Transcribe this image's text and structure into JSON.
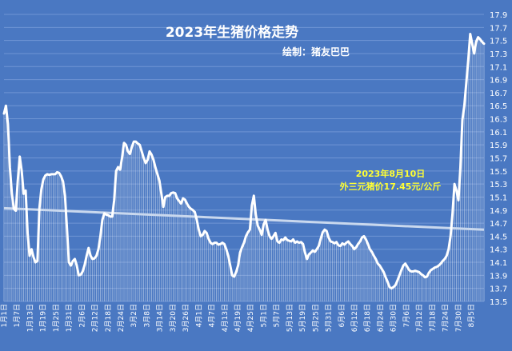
{
  "chart_data": {
    "type": "line",
    "title": "2023年生猪价格走势",
    "subtitle": "绘制：猪友巴巴",
    "annotation_lines": [
      "2023年8月10日",
      "外三元猪价17.45元/公斤"
    ],
    "ylim": [
      13.5,
      17.9
    ],
    "yticks": [
      13.5,
      13.7,
      13.9,
      14.1,
      14.3,
      14.5,
      14.7,
      14.9,
      15.1,
      15.3,
      15.5,
      15.7,
      15.9,
      16.1,
      16.3,
      16.5,
      16.7,
      16.9,
      17.1,
      17.3,
      17.5,
      17.7,
      17.9
    ],
    "xticks": [
      "1月1日",
      "1月7日",
      "1月13日",
      "1月19日",
      "1月25日",
      "1月31日",
      "2月6日",
      "2月12日",
      "2月18日",
      "2月24日",
      "3月2日",
      "3月8日",
      "3月14日",
      "3月20日",
      "3月26日",
      "4月1日",
      "4月7日",
      "4月13日",
      "4月19日",
      "4月25日",
      "5月1日",
      "5月7日",
      "5月13日",
      "5月19日",
      "5月25日",
      "5月31日",
      "6月6日",
      "6月12日",
      "6月18日",
      "6月24日",
      "6月30日",
      "7月6日",
      "7月12日",
      "7月18日",
      "7月24日",
      "7月30日",
      "8月5日"
    ],
    "series": [
      {
        "values": [
          16.38,
          16.5,
          16.22,
          15.55,
          15.15,
          14.92,
          14.89,
          15.35,
          15.72,
          15.5,
          15.15,
          15.2,
          14.55,
          14.2,
          14.3,
          14.18,
          14.1,
          14.12,
          14.93,
          15.22,
          15.37,
          15.43,
          15.45,
          15.44,
          15.45,
          15.45,
          15.45,
          15.48,
          15.47,
          15.42,
          15.34,
          15.12,
          14.62,
          14.1,
          14.05,
          14.12,
          14.15,
          14.05,
          13.9,
          13.91,
          13.96,
          14.06,
          14.2,
          14.32,
          14.2,
          14.15,
          14.16,
          14.2,
          14.3,
          14.5,
          14.75,
          14.85,
          14.83,
          14.82,
          14.8,
          14.8,
          15.05,
          15.5,
          15.56,
          15.52,
          15.7,
          15.93,
          15.9,
          15.8,
          15.76,
          15.87,
          15.95,
          15.95,
          15.92,
          15.9,
          15.8,
          15.7,
          15.62,
          15.67,
          15.8,
          15.75,
          15.67,
          15.55,
          15.45,
          15.35,
          15.15,
          14.95,
          15.1,
          15.12,
          15.12,
          15.16,
          15.17,
          15.16,
          15.08,
          15.04,
          15.0,
          15.08,
          15.06,
          15.0,
          14.95,
          14.92,
          14.9,
          14.87,
          14.75,
          14.6,
          14.5,
          14.52,
          14.58,
          14.55,
          14.46,
          14.4,
          14.38,
          14.4,
          14.4,
          14.37,
          14.38,
          14.4,
          14.38,
          14.3,
          14.2,
          14.05,
          13.9,
          13.88,
          13.95,
          14.05,
          14.25,
          14.33,
          14.4,
          14.5,
          14.56,
          14.6,
          14.97,
          15.12,
          14.83,
          14.66,
          14.6,
          14.52,
          14.68,
          14.75,
          14.6,
          14.5,
          14.46,
          14.5,
          14.55,
          14.42,
          14.4,
          14.45,
          14.44,
          14.48,
          14.44,
          14.43,
          14.42,
          14.45,
          14.4,
          14.42,
          14.4,
          14.41,
          14.38,
          14.25,
          14.15,
          14.22,
          14.25,
          14.28,
          14.26,
          14.3,
          14.35,
          14.46,
          14.56,
          14.6,
          14.58,
          14.48,
          14.42,
          14.41,
          14.39,
          14.41,
          14.36,
          14.35,
          14.39,
          14.37,
          14.4,
          14.42,
          14.38,
          14.35,
          14.3,
          14.33,
          14.38,
          14.42,
          14.48,
          14.5,
          14.45,
          14.38,
          14.3,
          14.26,
          14.2,
          14.15,
          14.08,
          14.05,
          14.0,
          13.95,
          13.87,
          13.8,
          13.72,
          13.7,
          13.72,
          13.75,
          13.82,
          13.9,
          13.98,
          14.05,
          14.08,
          14.03,
          13.98,
          13.96,
          13.96,
          13.97,
          13.96,
          13.95,
          13.92,
          13.9,
          13.87,
          13.88,
          13.94,
          13.98,
          14.0,
          14.02,
          14.03,
          14.05,
          14.08,
          14.12,
          14.15,
          14.2,
          14.3,
          14.5,
          14.85,
          15.3,
          15.2,
          15.05,
          15.55,
          16.28,
          16.5,
          16.85,
          17.2,
          17.6,
          17.45,
          17.3,
          17.48,
          17.55,
          17.52,
          17.48,
          17.45
        ]
      }
    ],
    "trend_line": {
      "start": 14.93,
      "end": 14.6
    }
  }
}
